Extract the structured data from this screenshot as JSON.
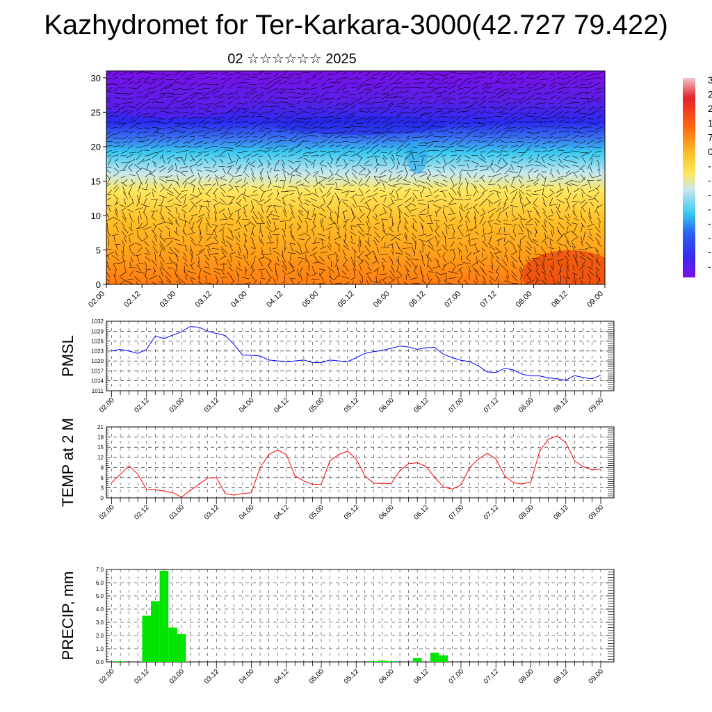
{
  "title": "Kazhydromet for Ter-Karkara-3000(42.727 79.422)",
  "subtitle": "02 ☆☆☆☆☆☆ 2025",
  "time_labels": [
    "02.00",
    "02.12",
    "03.00",
    "03.12",
    "04.00",
    "04.12",
    "05.00",
    "05.12",
    "06.00",
    "06.12",
    "07.00",
    "07.12",
    "08.00",
    "08.12",
    "09.00"
  ],
  "colors": {
    "pmsl_line": "#0000ff",
    "temp_line": "#ff0000",
    "precip_bar": "#00e400",
    "grid": "#000000"
  },
  "colorbar_labels": [
    "3",
    "2",
    "2",
    "1",
    "7",
    "0",
    "-",
    "-",
    "-",
    "-",
    "-",
    "-",
    "-",
    "-"
  ],
  "chart_data": [
    {
      "type": "heatmap",
      "name": "cross-section",
      "x_range": [
        0,
        14
      ],
      "ylim": [
        0,
        31
      ],
      "yticks": [
        "0",
        "5",
        "10",
        "15",
        "20",
        "25",
        "30"
      ],
      "vectors": "wind arrows overlay",
      "color_scale": [
        "#7a10e8",
        "#5a1fe6",
        "#2a2af0",
        "#3a78f0",
        "#38c8f0",
        "#c8e8f0",
        "#ffe860",
        "#ffc028",
        "#ff9a18",
        "#ff6a10",
        "#e62008"
      ]
    },
    {
      "type": "line",
      "name": "pmsl",
      "ylabel": "PMSL",
      "ylim": [
        1011,
        1032
      ],
      "yticks": [
        "1032",
        "1029",
        "1026",
        "1023",
        "1020",
        "1017",
        "1014",
        "1011"
      ],
      "y": [
        1023,
        1023.5,
        1023,
        1022.3,
        1023.5,
        1027.5,
        1026.8,
        1027.8,
        1028.8,
        1030.4,
        1030.2,
        1029,
        1028.3,
        1027.7,
        1025,
        1021.8,
        1021.7,
        1021.5,
        1020.3,
        1020,
        1019.8,
        1020,
        1020.3,
        1019.5,
        1019.5,
        1020.3,
        1020,
        1019.8,
        1021,
        1022.3,
        1022.8,
        1023.2,
        1023.8,
        1024.5,
        1024.2,
        1023.5,
        1024,
        1024.1,
        1022,
        1021,
        1020.2,
        1019.8,
        1018.5,
        1016.7,
        1016.5,
        1017.8,
        1017.3,
        1016,
        1015.5,
        1015.5,
        1014.9,
        1014.6,
        1014.2,
        1015.6,
        1015,
        1014.6,
        1015.7
      ]
    },
    {
      "type": "line",
      "name": "temp",
      "ylabel": "TEMP at 2 M",
      "ylim": [
        0,
        21
      ],
      "yticks": [
        "21",
        "18",
        "15",
        "12",
        "9",
        "6",
        "3",
        "0"
      ],
      "y": [
        4.5,
        7,
        9.5,
        7,
        2.5,
        2.4,
        2,
        1.5,
        0.2,
        2.2,
        4,
        5.8,
        6,
        1.3,
        0.8,
        1.3,
        1.5,
        9,
        12.8,
        14.2,
        12.8,
        6.5,
        5,
        4,
        4,
        11,
        12.8,
        13.8,
        11.5,
        6.5,
        4.3,
        4.3,
        4.2,
        8,
        10.1,
        10.4,
        9.3,
        6,
        3.2,
        2.6,
        3.8,
        9,
        11.5,
        13.2,
        11.5,
        6.5,
        4.5,
        4.1,
        4.7,
        13.8,
        17.4,
        18.3,
        16.3,
        11,
        9.2,
        8.3,
        8.5
      ]
    },
    {
      "type": "bar",
      "name": "precip",
      "ylabel": "PRECIP, mm",
      "ylim": [
        0,
        7
      ],
      "yticks": [
        "7.0",
        "6.0",
        "5.0",
        "4.0",
        "3.0",
        "2.0",
        "1.0",
        "0.0"
      ],
      "values": [
        0,
        0.05,
        0,
        0,
        3.5,
        4.6,
        6.9,
        2.6,
        2.1,
        0,
        0,
        0,
        0,
        0,
        0,
        0,
        0,
        0,
        0,
        0,
        0,
        0,
        0,
        0,
        0,
        0,
        0,
        0,
        0,
        0,
        0.05,
        0.1,
        0.05,
        0,
        0,
        0.3,
        0,
        0.7,
        0.5,
        0,
        0,
        0,
        0,
        0,
        0,
        0,
        0,
        0,
        0,
        0,
        0,
        0,
        0,
        0,
        0,
        0,
        0
      ]
    }
  ]
}
